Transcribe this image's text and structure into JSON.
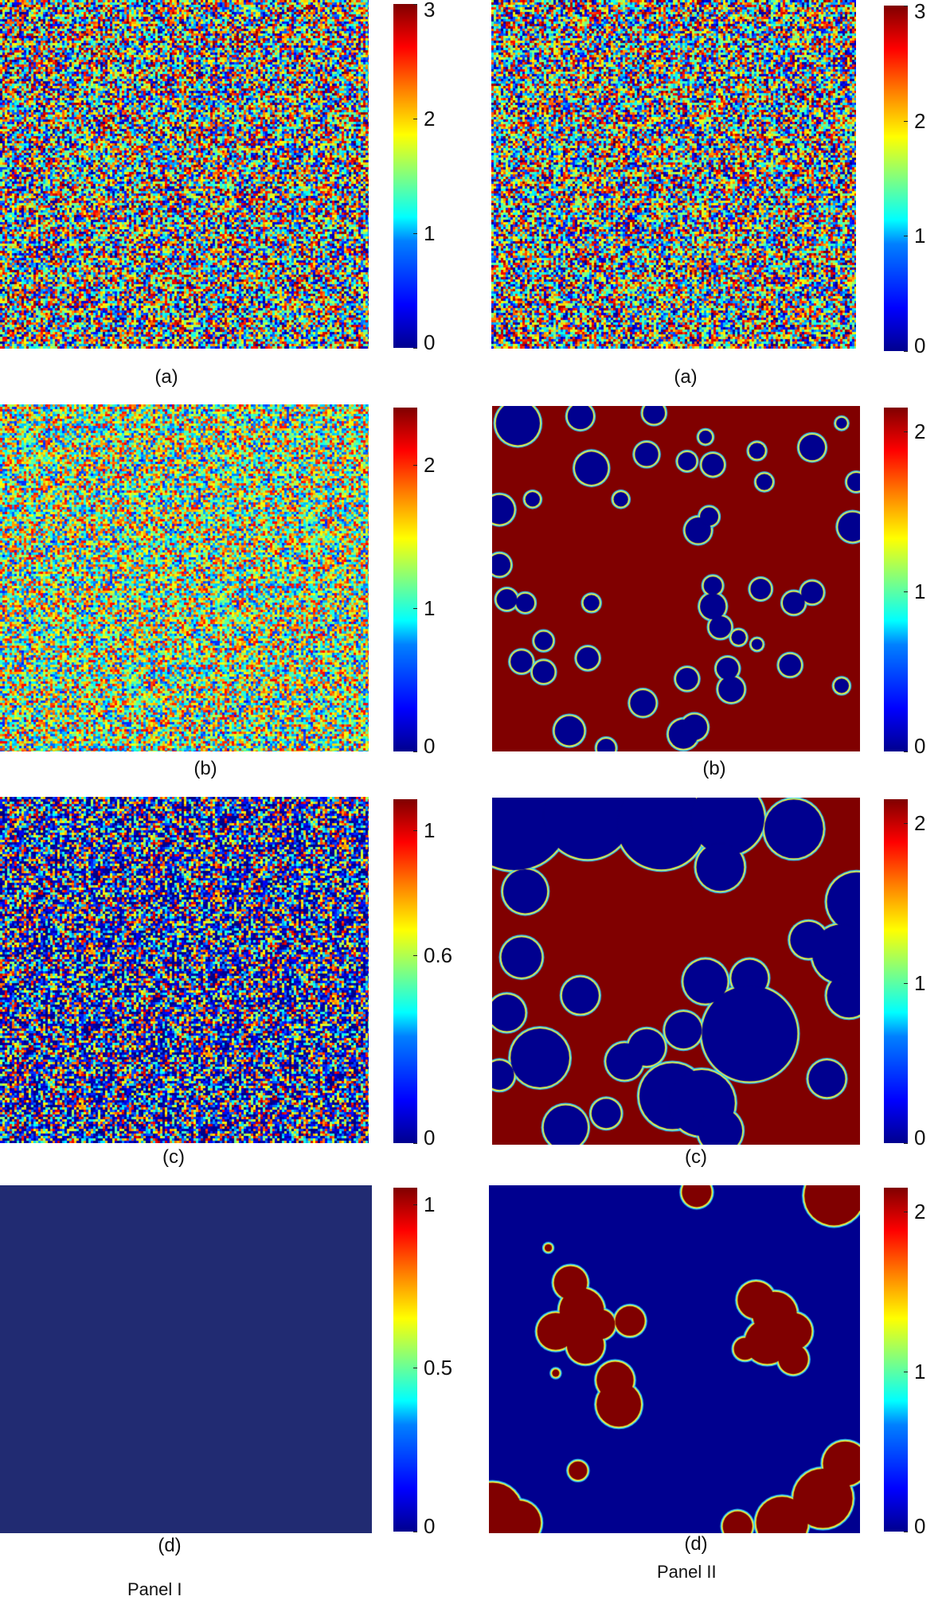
{
  "chart_data": [
    {
      "type": "heatmap",
      "panel": "Panel I",
      "label": "(a)",
      "field": "random",
      "colorbar": {
        "ticks": [
          "0",
          "1",
          "2",
          "3"
        ],
        "range": [
          0,
          3
        ]
      }
    },
    {
      "type": "heatmap",
      "panel": "Panel II",
      "label": "(a)",
      "field": "random",
      "colorbar": {
        "ticks": [
          "0",
          "1",
          "2",
          "3"
        ],
        "range": [
          0,
          3
        ]
      }
    },
    {
      "type": "heatmap",
      "panel": "Panel I",
      "label": "(b)",
      "field": "random",
      "colorbar": {
        "ticks": [
          "0",
          "1",
          "2"
        ],
        "range": [
          0,
          2.4
        ]
      }
    },
    {
      "type": "heatmap",
      "panel": "Panel II",
      "label": "(b)",
      "field": "blobs-on-red",
      "colorbar": {
        "ticks": [
          "0",
          "1",
          "2"
        ],
        "range": [
          0,
          2.15
        ]
      }
    },
    {
      "type": "heatmap",
      "panel": "Panel I",
      "label": "(c)",
      "field": "random-low",
      "colorbar": {
        "ticks": [
          "0",
          "0.6",
          "1"
        ],
        "range": [
          0,
          1.1
        ]
      }
    },
    {
      "type": "heatmap",
      "panel": "Panel II",
      "label": "(c)",
      "field": "large-blobs",
      "colorbar": {
        "ticks": [
          "0",
          "1",
          "2"
        ],
        "range": [
          0,
          2.15
        ]
      }
    },
    {
      "type": "heatmap",
      "panel": "Panel I",
      "label": "(d)",
      "field": "uniform",
      "colorbar": {
        "ticks": [
          "0",
          "0.5",
          "1"
        ],
        "range": [
          0,
          1.05
        ]
      }
    },
    {
      "type": "heatmap",
      "panel": "Panel II",
      "label": "(d)",
      "field": "red-islands",
      "colorbar": {
        "ticks": [
          "0",
          "1",
          "2"
        ],
        "range": [
          0,
          2.15
        ]
      }
    }
  ],
  "panel_titles": [
    "Panel I",
    "Panel II"
  ],
  "colormap": [
    "#00008f",
    "#0000ff",
    "#0080ff",
    "#00ffff",
    "#80ff80",
    "#ffff00",
    "#ff8000",
    "#ff0000",
    "#800000"
  ]
}
